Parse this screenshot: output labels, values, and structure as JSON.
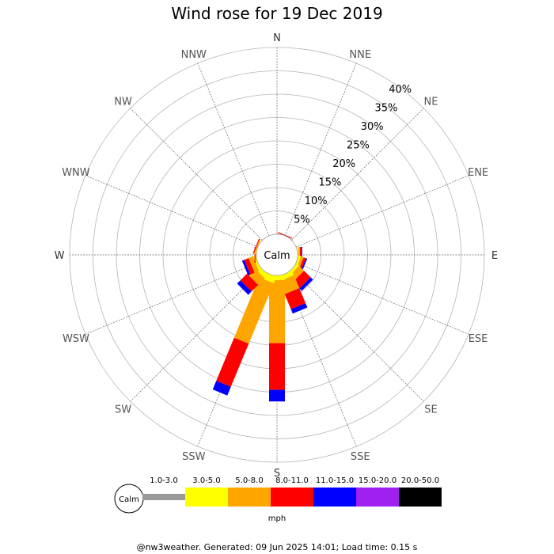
{
  "chart_data": {
    "type": "wind-rose",
    "title": "Wind rose for 19 Dec 2019",
    "directions": [
      "N",
      "NNE",
      "NE",
      "ENE",
      "E",
      "ESE",
      "SE",
      "SSE",
      "S",
      "SSW",
      "SW",
      "WSW",
      "W",
      "WNW",
      "NW",
      "NNW"
    ],
    "ring_labels": [
      "5%",
      "10%",
      "15%",
      "20%",
      "25%",
      "30%",
      "35%",
      "40%"
    ],
    "rlim": [
      0,
      40
    ],
    "calm_label": "Calm",
    "speed_bins": [
      "1.0-3.0",
      "3.0-5.0",
      "5.0-8.0",
      "8.0-11.0",
      "11.0-15.0",
      "15.0-20.0",
      "20.0-50.0"
    ],
    "speed_colors": [
      "#999999",
      "#ffff00",
      "#ffa500",
      "#ff0000",
      "#0000ff",
      "#a020f0",
      "#000000"
    ],
    "unit_label": "mph",
    "series": [
      {
        "direction": "E",
        "values": [
          0,
          0.2,
          0.3,
          0.3,
          0.2,
          0,
          0
        ]
      },
      {
        "direction": "ESE",
        "values": [
          0,
          0.5,
          0.6,
          0.5,
          0.3,
          0,
          0
        ]
      },
      {
        "direction": "SE",
        "values": [
          0,
          0.6,
          1.5,
          2.0,
          0.7,
          0,
          0
        ]
      },
      {
        "direction": "SSE",
        "values": [
          0,
          1.0,
          3.0,
          3.5,
          1.0,
          0,
          0
        ]
      },
      {
        "direction": "S",
        "values": [
          0,
          1.0,
          13.5,
          10.0,
          2.5,
          0,
          0
        ]
      },
      {
        "direction": "SSW",
        "values": [
          0,
          1.5,
          14.0,
          10.0,
          2.0,
          0,
          0
        ]
      },
      {
        "direction": "SW",
        "values": [
          0,
          1.0,
          2.0,
          2.0,
          1.0,
          0,
          0
        ]
      },
      {
        "direction": "WSW",
        "values": [
          0,
          0.5,
          1.0,
          1.0,
          0.5,
          0,
          0
        ]
      },
      {
        "direction": "W",
        "values": [
          0,
          0.1,
          0.1,
          0.2,
          0,
          0,
          0
        ]
      },
      {
        "direction": "WNW",
        "values": [
          0,
          0.1,
          0.2,
          0.2,
          0,
          0,
          0
        ]
      },
      {
        "direction": "NNE",
        "values": [
          0,
          0,
          0,
          0.2,
          0,
          0,
          0
        ]
      }
    ]
  },
  "footer": "@nw3weather. Generated: 09 Jun 2025 14:01; Load time: 0.15 s"
}
